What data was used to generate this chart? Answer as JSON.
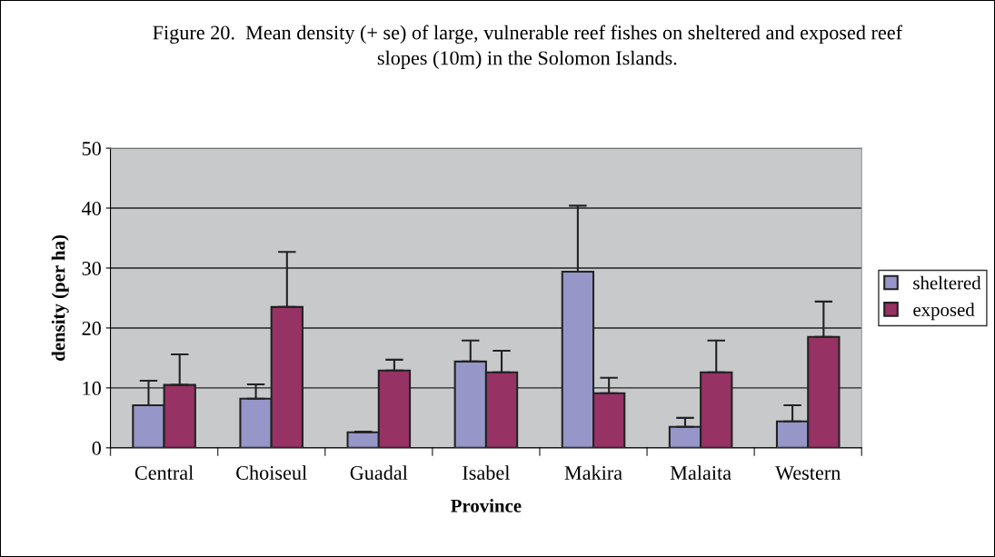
{
  "chart_data": {
    "type": "bar",
    "title": "Figure 20.  Mean density (+ se) of large, vulnerable reef fishes on sheltered and exposed reef slopes (10m) in the Solomon Islands.",
    "xlabel": "Province",
    "ylabel": "density (per ha)",
    "categories": [
      "Central",
      "Choiseul",
      "Guadal",
      "Isabel",
      "Makira",
      "Malaita",
      "Western"
    ],
    "series": [
      {
        "name": "sheltered",
        "color": "#9696c8",
        "values": [
          7.1,
          8.2,
          2.6,
          14.4,
          29.4,
          3.5,
          4.4
        ],
        "errors": [
          [
            7.1,
            11.2
          ],
          [
            8.2,
            10.6
          ],
          [
            2.6,
            2.7
          ],
          [
            14.4,
            17.9
          ],
          [
            29.4,
            40.4
          ],
          [
            3.5,
            5.0
          ],
          [
            4.4,
            7.1
          ]
        ]
      },
      {
        "name": "exposed",
        "color": "#963264",
        "values": [
          10.5,
          23.5,
          12.9,
          12.6,
          9.1,
          12.6,
          18.5
        ],
        "errors": [
          [
            10.5,
            15.6
          ],
          [
            23.5,
            32.7
          ],
          [
            12.9,
            14.7
          ],
          [
            12.6,
            16.2
          ],
          [
            9.1,
            11.7
          ],
          [
            12.6,
            17.9
          ],
          [
            18.5,
            24.4
          ]
        ]
      }
    ],
    "ylim": [
      0,
      50
    ],
    "yticks": [
      0,
      10,
      20,
      30,
      40,
      50
    ],
    "grid": "y",
    "legend": "right"
  }
}
